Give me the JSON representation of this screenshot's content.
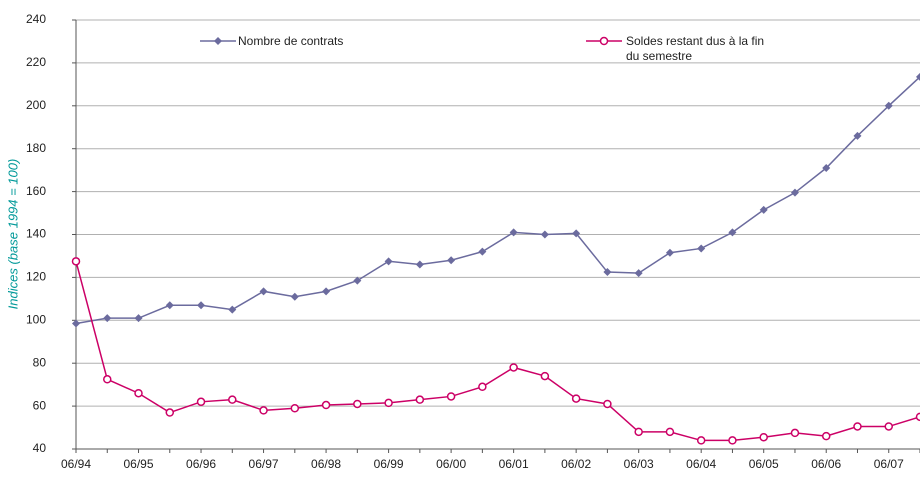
{
  "chart_data": {
    "type": "line",
    "y_label": "Indices (base 1994 = 100)",
    "categories": [
      "06/94",
      null,
      "06/95",
      null,
      "06/96",
      null,
      "06/97",
      null,
      "06/98",
      null,
      "06/99",
      null,
      "06/00",
      null,
      "06/01",
      null,
      "06/02",
      null,
      "06/03",
      null,
      "06/04",
      null,
      "06/05",
      null,
      "06/06",
      null,
      "06/07",
      null
    ],
    "series": [
      {
        "name": "Nombre de contrats",
        "color": "#6b6b9e",
        "marker": "diamond",
        "values": [
          98.5,
          101,
          101,
          107,
          107,
          105,
          113.5,
          111,
          113.5,
          118.5,
          127.5,
          126,
          128,
          132,
          141,
          140,
          140.5,
          122.5,
          122,
          131.5,
          133.5,
          141,
          151.5,
          159.5,
          171,
          186,
          200,
          213.5
        ]
      },
      {
        "name": "Soldes restant dus à la fin du semestre",
        "color": "#cc0066",
        "marker": "circle",
        "values": [
          127.5,
          72.5,
          66,
          57,
          62,
          63,
          58,
          59,
          60.5,
          61,
          61.5,
          63,
          64.5,
          69,
          78,
          74,
          63.5,
          61,
          48,
          48,
          44,
          44,
          45.5,
          47.5,
          46,
          50.5,
          50.5,
          55
        ]
      }
    ],
    "ylim": [
      40,
      240
    ],
    "yticks": [
      40,
      60,
      80,
      100,
      120,
      140,
      160,
      180,
      200,
      220,
      240
    ],
    "grid": true
  }
}
